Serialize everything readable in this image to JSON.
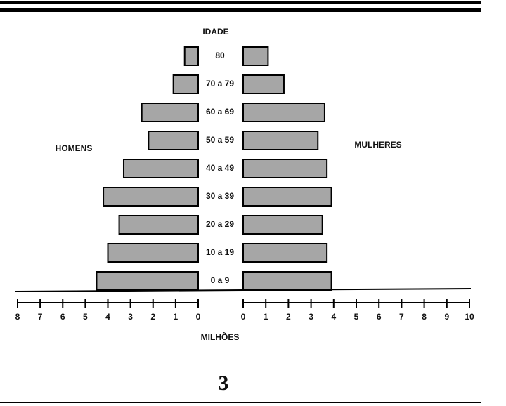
{
  "chart_data": {
    "type": "pyramid",
    "y_label": "IDADE",
    "x_label": "MILHÕES",
    "figure_number": "3",
    "categories": [
      "80",
      "70 a 79",
      "60 a 69",
      "50 a 59",
      "40 a 49",
      "30 a 39",
      "20 a 29",
      "10 a 19",
      "0 a 9"
    ],
    "series": [
      {
        "name": "HOMENS",
        "color": "#a6a6a6",
        "values": [
          0.6,
          1.1,
          2.5,
          2.2,
          3.3,
          4.2,
          3.5,
          4.0,
          4.5
        ]
      },
      {
        "name": "MULHERES",
        "color": "#a6a6a6",
        "values": [
          1.1,
          1.8,
          3.6,
          3.3,
          3.7,
          3.9,
          3.5,
          3.7,
          3.9
        ]
      }
    ],
    "xlim": [
      0,
      8
    ],
    "xticks": [
      8,
      7,
      6,
      5,
      4,
      3,
      2,
      1,
      0
    ],
    "x2lim": [
      0,
      10
    ],
    "x2ticks": [
      0,
      1,
      2,
      3,
      4,
      5,
      6,
      7,
      8,
      9,
      10
    ]
  }
}
